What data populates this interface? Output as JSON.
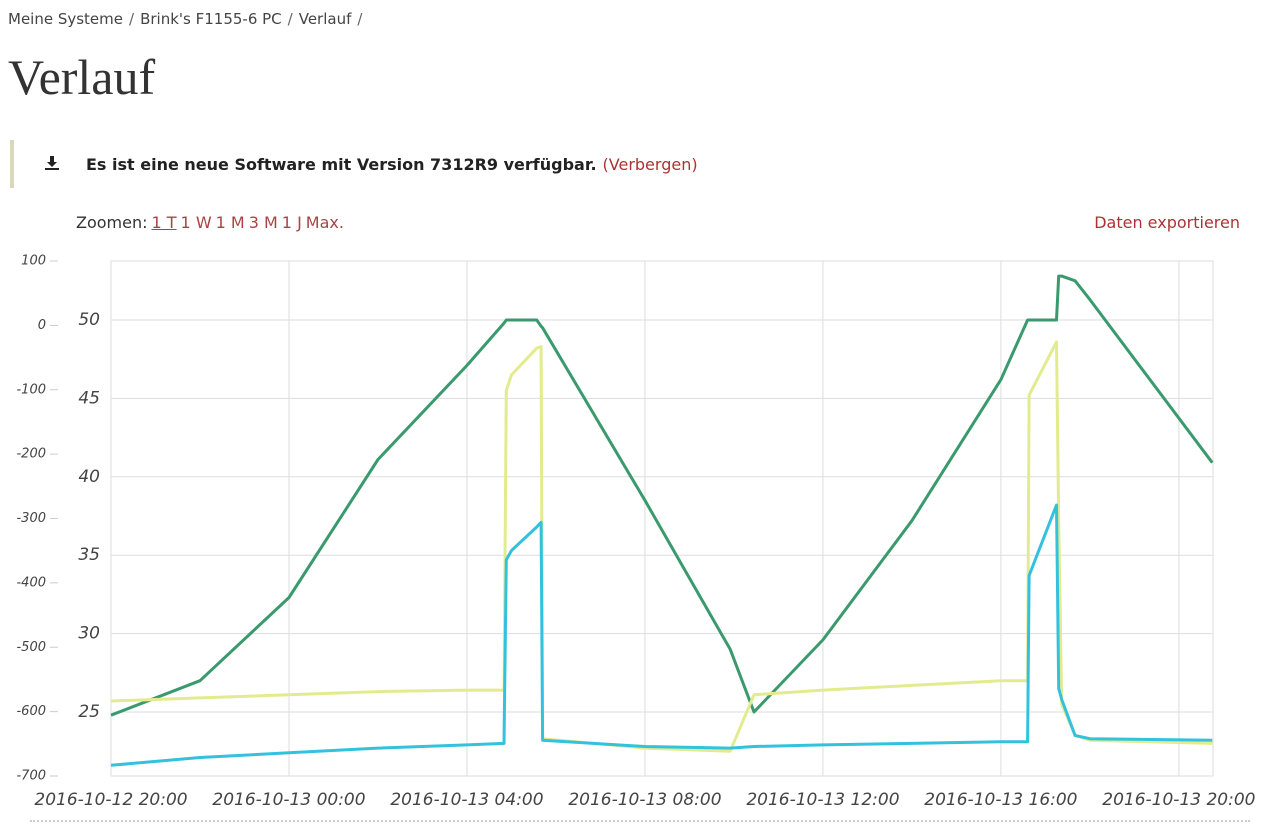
{
  "breadcrumb": {
    "items": [
      "Meine Systeme",
      "Brink's F1155-6 PC",
      "Verlauf"
    ],
    "separator": "/"
  },
  "header": {
    "title": "Verlauf"
  },
  "notice": {
    "text": "Es ist eine neue Software mit Version 7312R9 verfügbar.",
    "action": "(Verbergen)"
  },
  "zoom": {
    "label": "Zoomen:",
    "options": [
      "1 T",
      "1 W",
      "1 M",
      "3 M",
      "1 J",
      "Max."
    ],
    "active": "1 T"
  },
  "export": "Daten exportieren",
  "chart_data": {
    "type": "line",
    "x": [
      "2016-10-12 20:00",
      "2016-10-12 22:00",
      "2016-10-13 00:00",
      "2016-10-13 02:00",
      "2016-10-13 04:00",
      "2016-10-13 04:50",
      "2016-10-13 04:53",
      "2016-10-13 05:00",
      "2016-10-13 05:34",
      "2016-10-13 05:40",
      "2016-10-13 05:42",
      "2016-10-13 08:00",
      "2016-10-13 09:55",
      "2016-10-13 10:27",
      "2016-10-13 12:00",
      "2016-10-13 14:00",
      "2016-10-13 16:00",
      "2016-10-13 16:36",
      "2016-10-13 16:38",
      "2016-10-13 17:15",
      "2016-10-13 17:18",
      "2016-10-13 17:22",
      "2016-10-13 17:40",
      "2016-10-13 18:00",
      "2016-10-13 20:45"
    ],
    "series": [
      {
        "color": "#3a9a6e",
        "values": [
          24.8,
          27.0,
          32.3,
          41.1,
          47.1,
          49.8,
          50,
          50,
          50,
          49.6,
          49.5,
          38.5,
          29.0,
          25,
          29.6,
          37.2,
          46.2,
          50,
          50,
          50,
          52.8,
          52.8,
          52.5,
          51.3,
          40.9
        ]
      },
      {
        "color": "#e2ec8e",
        "values": [
          25.7,
          25.9,
          26.1,
          26.3,
          26.4,
          26.4,
          45.5,
          46.5,
          48.2,
          48.3,
          23.3,
          22.7,
          22.5,
          26.1,
          26.4,
          26.7,
          27.0,
          27.0,
          45.2,
          48.6,
          37.2,
          25.5,
          23.5,
          23.2,
          23.0
        ]
      },
      {
        "color": "#33c2de",
        "values": [
          21.6,
          22.1,
          22.4,
          22.7,
          22.9,
          23.0,
          34.7,
          35.3,
          36.8,
          37.1,
          23.2,
          22.8,
          22.7,
          22.8,
          22.9,
          23.0,
          23.1,
          23.1,
          33.7,
          38.2,
          26.5,
          25.8,
          23.5,
          23.3,
          23.2
        ]
      }
    ],
    "xlim": [
      "2016-10-12 20:00",
      "2016-10-13 20:46"
    ],
    "xticks": [
      "2016-10-12 20:00",
      "2016-10-13 00:00",
      "2016-10-13 04:00",
      "2016-10-13 08:00",
      "2016-10-13 12:00",
      "2016-10-13 16:00",
      "2016-10-13 20:00"
    ],
    "ylim": [
      20.92,
      53.76
    ],
    "yticks": [
      25,
      30,
      35,
      40,
      45,
      50
    ],
    "y2lim": [
      -700,
      100
    ],
    "y2ticks": [
      -700,
      -600,
      -500,
      -400,
      -300,
      -200,
      -100,
      0,
      100
    ],
    "grid": true
  }
}
